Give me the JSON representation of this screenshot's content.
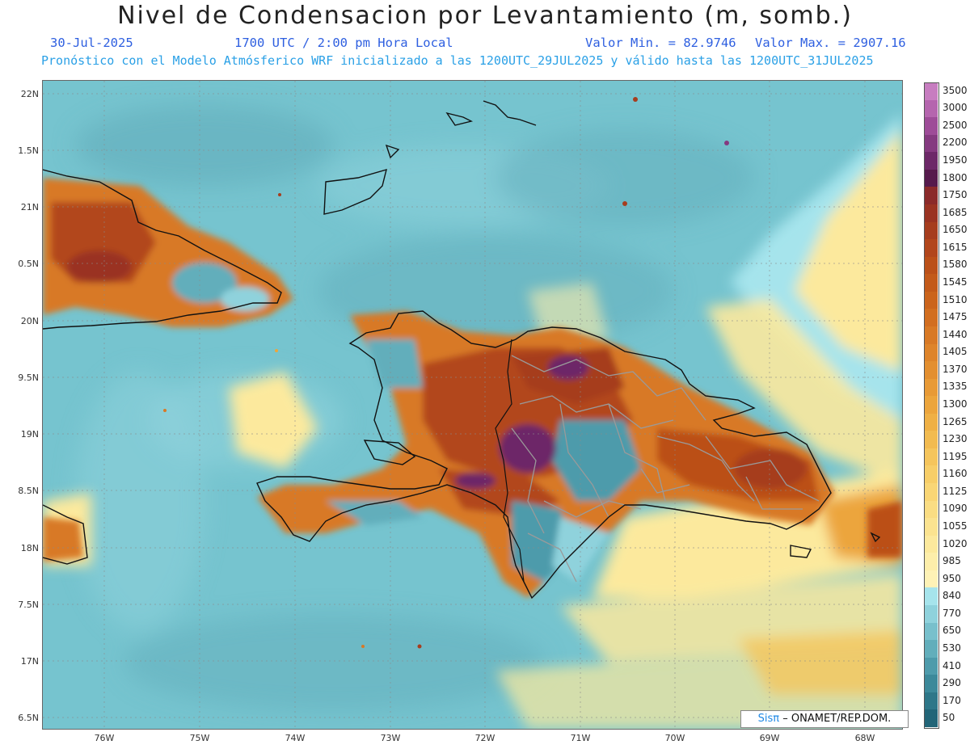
{
  "header": {
    "title": "Nivel de Condensacion por Levantamiento (m, somb.)",
    "date": "30-Jul-2025",
    "time": "1700 UTC / 2:00 pm Hora Local",
    "valmin": "Valor Min. = 82.9746",
    "valmax": "Valor Max. = 2907.16",
    "model": "Pronóstico con el Modelo Atmósferico WRF inicializado a las 1200UTC_29JUL2025 y válido hasta las  1200UTC_31JUL2025"
  },
  "axes": {
    "lat_labels": [
      "22N",
      "1.5N",
      "21N",
      "0.5N",
      "20N",
      "9.5N",
      "19N",
      "8.5N",
      "18N",
      "7.5N",
      "17N",
      "6.5N"
    ],
    "lon_labels": [
      "76W",
      "75W",
      "74W",
      "73W",
      "72W",
      "71W",
      "70W",
      "69W",
      "68W"
    ]
  },
  "colorbar": {
    "labels": [
      "3500",
      "3000",
      "2500",
      "2200",
      "1950",
      "1800",
      "1750",
      "1685",
      "1650",
      "1615",
      "1580",
      "1545",
      "1510",
      "1475",
      "1440",
      "1405",
      "1370",
      "1335",
      "1300",
      "1265",
      "1230",
      "1195",
      "1160",
      "1125",
      "1090",
      "1055",
      "1020",
      "985",
      "950",
      "840",
      "770",
      "650",
      "530",
      "410",
      "290",
      "170",
      "50"
    ],
    "colors": [
      "#c77dc0",
      "#b565ae",
      "#9e4c98",
      "#853a80",
      "#6d2868",
      "#561a4c",
      "#8b2a2a",
      "#9a3322",
      "#a63d1e",
      "#b2461c",
      "#bb5019",
      "#c35a1a",
      "#cb641c",
      "#d26e20",
      "#d87925",
      "#de842a",
      "#e38f30",
      "#e89a36",
      "#eca53c",
      "#efb045",
      "#f2bb50",
      "#f5c55c",
      "#f7ce68",
      "#f9d675",
      "#fadd83",
      "#fbe390",
      "#fce99d",
      "#fdeeaa",
      "#fef2b6",
      "#a6e4ec",
      "#8fd2dc",
      "#78c0cc",
      "#62aebb",
      "#4e9bab",
      "#3c899a",
      "#2e7789",
      "#226578"
    ]
  },
  "credit": {
    "brand": "Sisπ",
    "text": "– ONAMET/REP.DOM."
  },
  "colors": {
    "ocean": "#76c4cf",
    "ocean_light": "#a6e4ec",
    "land_warm": "#d87925",
    "land_hot": "#a8451c",
    "land_peak": "#6d2868",
    "land_cool": "#4e9bab",
    "yellow_band": "#fce99d",
    "coast": "#111111",
    "province": "#9a9a9a"
  }
}
